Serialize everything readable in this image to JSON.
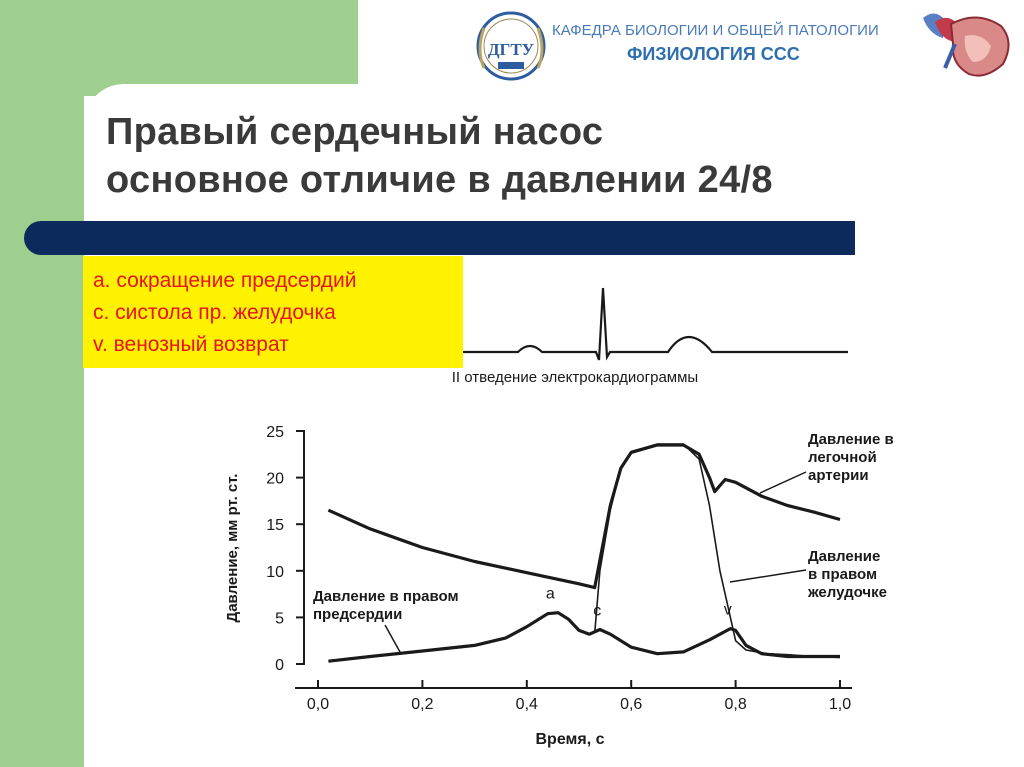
{
  "header": {
    "department": "КАФЕДРА БИОЛОГИИ И ОБЩЕЙ ПАТОЛОГИИ",
    "subject": "ФИЗИОЛОГИЯ ССС",
    "logo_text": "ДГТУ",
    "logo_icon": "university-seal-icon",
    "heart_icon": "heart-anatomy-icon"
  },
  "title": {
    "line1": "Правый сердечный насос",
    "line2": "основное отличие в давлении 24/8"
  },
  "legend": {
    "items": [
      "а. сокращение предсердий",
      "с. систола пр. желудочка",
      "v. венозный возврат"
    ]
  },
  "colors": {
    "green": "#9fcf8f",
    "navy": "#0d2a5c",
    "yellow": "#fff200",
    "red_text": "#e8141b"
  },
  "chart_data": [
    {
      "type": "line",
      "title": "II отведение электрокардиограммы",
      "series": [
        {
          "values": []
        }
      ],
      "waves": [
        "P",
        "QRS",
        "T"
      ]
    },
    {
      "type": "line",
      "xlabel": "Время, с",
      "ylabel": "Давление, мм рт. ст.",
      "xlim": [
        0,
        1.0
      ],
      "ylim": [
        0,
        25
      ],
      "x_ticks": [
        "0,0",
        "0,2",
        "0,4",
        "0,6",
        "0,8",
        "1,0"
      ],
      "y_ticks": [
        "0",
        "5",
        "10",
        "15",
        "20",
        "25"
      ],
      "grid": false,
      "series": [
        {
          "name": "Давление в легочной артерии",
          "points": [
            [
              0.02,
              16.5
            ],
            [
              0.1,
              14.5
            ],
            [
              0.2,
              12.5
            ],
            [
              0.3,
              11
            ],
            [
              0.4,
              9.8
            ],
            [
              0.5,
              8.6
            ],
            [
              0.53,
              8.2
            ],
            [
              0.56,
              17
            ],
            [
              0.58,
              21
            ],
            [
              0.6,
              22.7
            ],
            [
              0.65,
              23.5
            ],
            [
              0.7,
              23.5
            ],
            [
              0.73,
              22.5
            ],
            [
              0.75,
              20
            ],
            [
              0.76,
              18.5
            ],
            [
              0.78,
              19.8
            ],
            [
              0.8,
              19.5
            ],
            [
              0.85,
              18
            ],
            [
              0.9,
              17
            ],
            [
              0.95,
              16.3
            ],
            [
              1.0,
              15.5
            ]
          ]
        },
        {
          "name": "Давление в правом желудочке",
          "points": [
            [
              0.53,
              3.3
            ],
            [
              0.54,
              10
            ],
            [
              0.56,
              16.5
            ],
            [
              0.58,
              21
            ],
            [
              0.6,
              22.8
            ],
            [
              0.65,
              23.6
            ],
            [
              0.7,
              23.6
            ],
            [
              0.73,
              22
            ],
            [
              0.75,
              17
            ],
            [
              0.77,
              10
            ],
            [
              0.79,
              5
            ],
            [
              0.8,
              2.5
            ],
            [
              0.82,
              1.5
            ],
            [
              0.86,
              1.1
            ],
            [
              0.9,
              1
            ],
            [
              0.95,
              0.8
            ],
            [
              1.0,
              0.7
            ]
          ]
        },
        {
          "name": "Давление в правом предсердии",
          "points": [
            [
              0.02,
              0.3
            ],
            [
              0.1,
              0.8
            ],
            [
              0.2,
              1.4
            ],
            [
              0.3,
              2
            ],
            [
              0.36,
              2.8
            ],
            [
              0.4,
              4
            ],
            [
              0.44,
              5.4
            ],
            [
              0.46,
              5.5
            ],
            [
              0.48,
              4.8
            ],
            [
              0.5,
              3.6
            ],
            [
              0.52,
              3.2
            ],
            [
              0.54,
              3.7
            ],
            [
              0.56,
              3.2
            ],
            [
              0.6,
              1.8
            ],
            [
              0.65,
              1.1
            ],
            [
              0.7,
              1.3
            ],
            [
              0.75,
              2.6
            ],
            [
              0.79,
              3.8
            ],
            [
              0.8,
              3.6
            ],
            [
              0.82,
              2
            ],
            [
              0.85,
              1.1
            ],
            [
              0.9,
              0.8
            ],
            [
              0.95,
              0.8
            ],
            [
              1.0,
              0.8
            ]
          ]
        }
      ],
      "annotations": [
        {
          "label": "a",
          "x": 0.445,
          "y": 5.5
        },
        {
          "label": "c",
          "x": 0.535,
          "y": 3.7
        },
        {
          "label": "v",
          "x": 0.785,
          "y": 3.8
        }
      ]
    }
  ]
}
